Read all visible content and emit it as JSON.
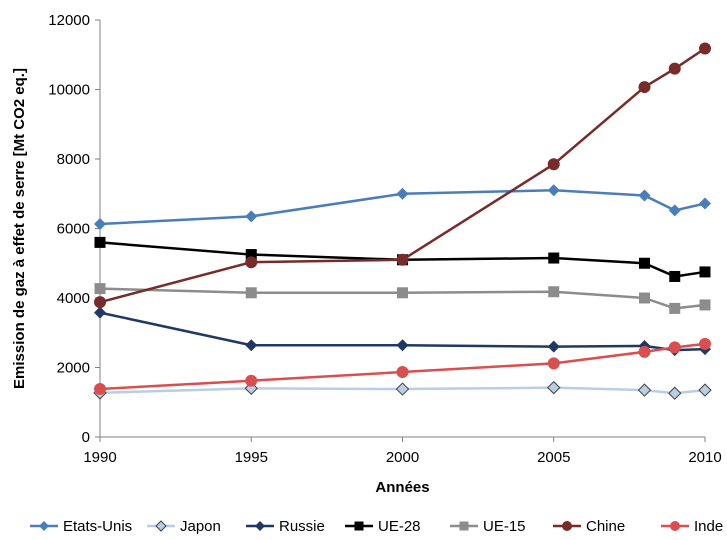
{
  "chart_data": {
    "type": "line",
    "xlabel": "Années",
    "ylabel": "Emission de gaz à effet de serre [Mt CO2 eq.]",
    "xlim": [
      1990,
      2010
    ],
    "ylim": [
      0,
      12000
    ],
    "x_ticks": [
      1990,
      1995,
      2000,
      2005,
      2010
    ],
    "y_ticks": [
      0,
      2000,
      4000,
      6000,
      8000,
      10000,
      12000
    ],
    "grid": false,
    "legend_position": "bottom",
    "x": [
      1990,
      1995,
      2000,
      2005,
      2008,
      2009,
      2010
    ],
    "series": [
      {
        "name": "Etats-Unis",
        "color": "#4a7ebb",
        "marker": "diamond",
        "values": [
          6130,
          6350,
          7000,
          7100,
          6950,
          6520,
          6720
        ]
      },
      {
        "name": "Japon",
        "color": "#b9cde5",
        "marker": "diamond",
        "values": [
          1270,
          1400,
          1380,
          1420,
          1350,
          1260,
          1350
        ]
      },
      {
        "name": "Russie",
        "color": "#1f3864",
        "marker": "diamond",
        "values": [
          3580,
          2640,
          2640,
          2600,
          2620,
          2500,
          2530
        ]
      },
      {
        "name": "UE-28",
        "color": "#000000",
        "marker": "square",
        "values": [
          5600,
          5250,
          5100,
          5150,
          5000,
          4620,
          4750
        ]
      },
      {
        "name": "UE-15",
        "color": "#8c8c8c",
        "marker": "square",
        "values": [
          4270,
          4150,
          4150,
          4180,
          4000,
          3700,
          3800
        ]
      },
      {
        "name": "Chine",
        "color": "#772c2a",
        "marker": "circle",
        "values": [
          3880,
          5030,
          5100,
          7850,
          10070,
          10600,
          11180
        ]
      },
      {
        "name": "Inde",
        "color": "#d94f4f",
        "marker": "circle",
        "values": [
          1380,
          1620,
          1870,
          2120,
          2450,
          2580,
          2680
        ]
      }
    ]
  }
}
